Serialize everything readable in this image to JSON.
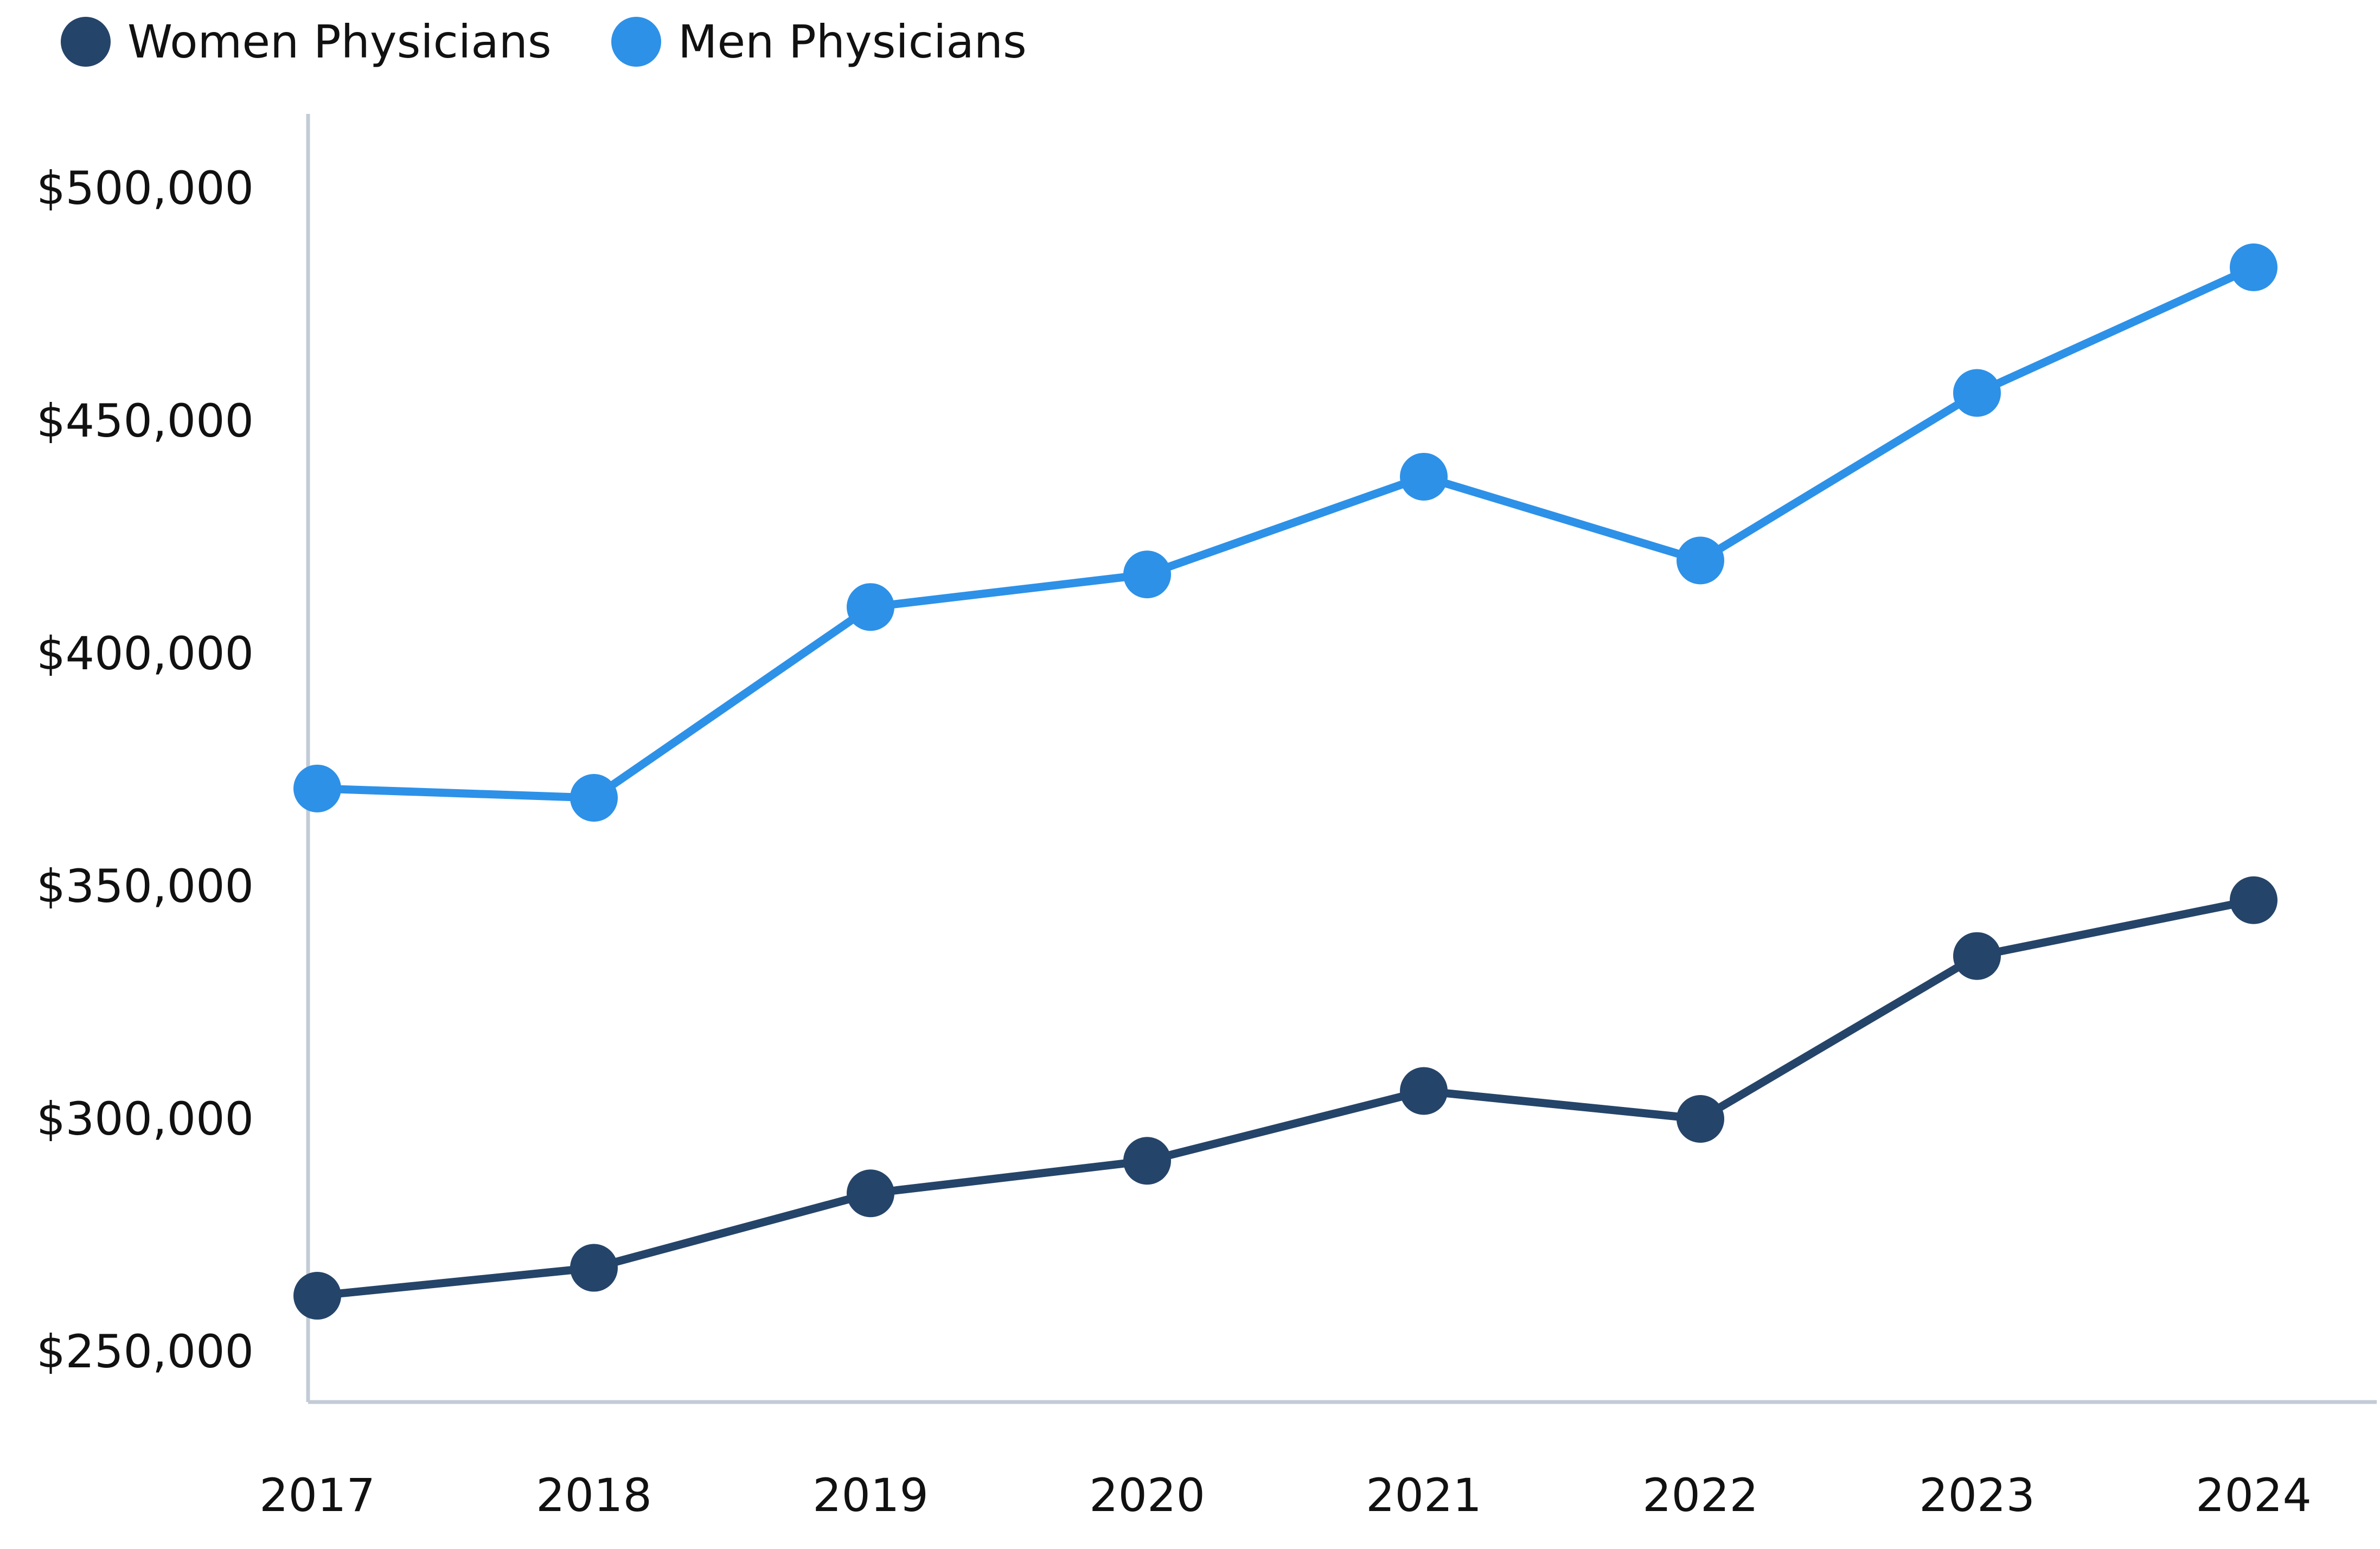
{
  "chart_data": {
    "type": "line",
    "title": "",
    "xlabel": "",
    "ylabel": "",
    "categories": [
      "2017",
      "2018",
      "2019",
      "2020",
      "2021",
      "2022",
      "2023",
      "2024"
    ],
    "yticks": [
      250000,
      300000,
      350000,
      400000,
      450000,
      500000
    ],
    "ytick_labels": [
      "$250,000",
      "$300,000",
      "$350,000",
      "$400,000",
      "$450,000",
      "$500,000"
    ],
    "ylim": [
      240000,
      515000
    ],
    "grid": false,
    "legend_position": "top-left",
    "series": [
      {
        "name": "Women Physicians",
        "color": "#254469",
        "values": [
          262000,
          268000,
          284000,
          291000,
          306000,
          300000,
          335000,
          347000
        ]
      },
      {
        "name": "Men Physicians",
        "color": "#2d91e8",
        "values": [
          371000,
          369000,
          410000,
          417000,
          438000,
          420000,
          456000,
          483000
        ]
      }
    ]
  }
}
